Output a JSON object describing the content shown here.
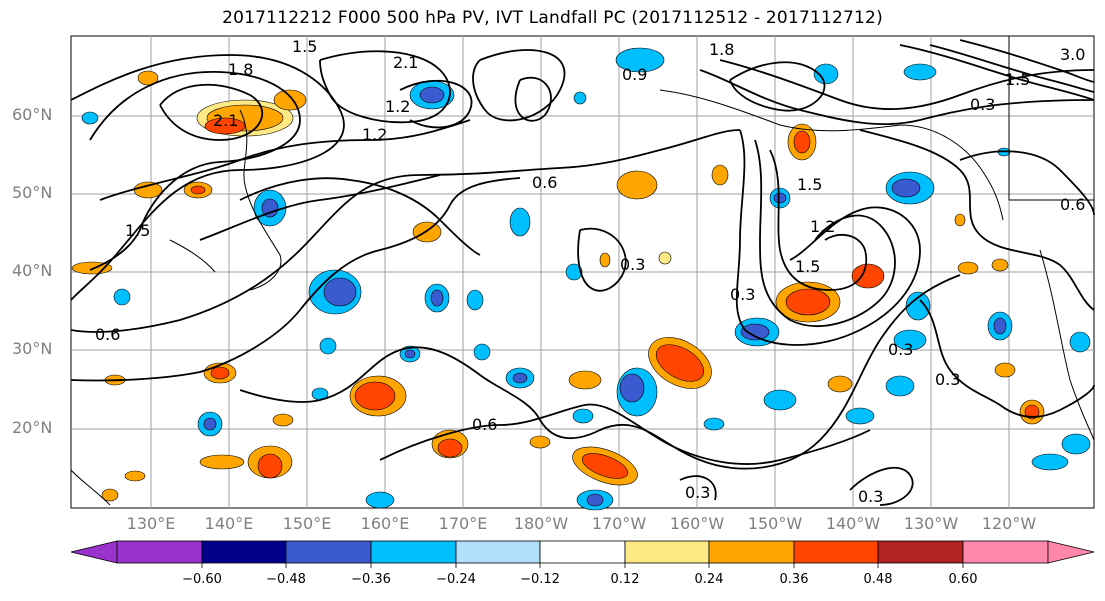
{
  "title": "2017112212 F000 500 hPa PV, IVT Landfall PC (2017112512 - 2017112712)",
  "map": {
    "lat_labels": [
      "60°N",
      "50°N",
      "40°N",
      "30°N",
      "20°N"
    ],
    "lon_labels": [
      "130°E",
      "140°E",
      "150°E",
      "160°E",
      "170°E",
      "180°W",
      "170°W",
      "160°W",
      "150°W",
      "140°W",
      "130°W",
      "120°W"
    ],
    "contour_labels": [
      "1.5",
      "1.8",
      "2.1",
      "2.1",
      "1.2",
      "1.5",
      "1.2",
      "0.6",
      "1.8",
      "1.5",
      "1.5",
      "1.2",
      "0.6",
      "0.6",
      "0.3",
      "0.3",
      "0.3",
      "0.3",
      "0.3",
      "0.9",
      "0.3",
      "3.0",
      "1.5",
      "0.6",
      "0.3"
    ],
    "grid_lines": true
  },
  "colorbar": {
    "tick_labels": [
      "−0.60",
      "−0.48",
      "−0.36",
      "−0.24",
      "−0.12",
      "0.12",
      "0.24",
      "0.36",
      "0.48",
      "0.60"
    ],
    "colors": [
      "#9932cc",
      "#00008b",
      "#3a5bd0",
      "#00bfff",
      "#b0e0fa",
      "#ffffff",
      "#ffe985",
      "#ffa500",
      "#ff4500",
      "#b22222",
      "#ff88aa"
    ]
  }
}
